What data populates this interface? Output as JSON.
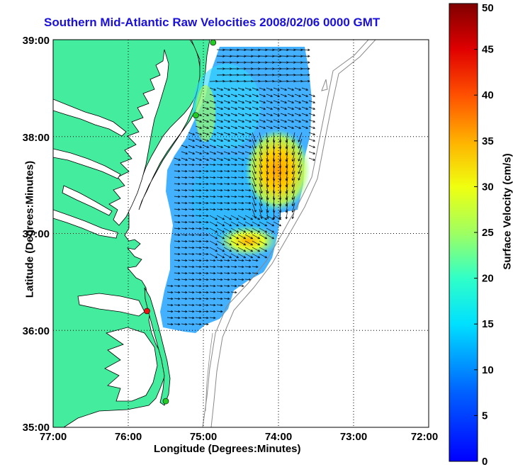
{
  "title": "Southern Mid-Atlantic Raw Velocities 2008/02/06 0000 GMT",
  "xlabel": "Longitude (Degrees:Minutes)",
  "ylabel": "Latitude (Degrees:Minutes)",
  "colorbar_label": "Surface Velocity (cm/s)",
  "x_ticks": [
    "77:00",
    "76:00",
    "75:00",
    "74:00",
    "73:00",
    "72:00"
  ],
  "y_ticks": [
    "39:00",
    "38:00",
    "37:00",
    "36:00",
    "35:00"
  ],
  "colorbar_ticks": [
    "0",
    "5",
    "10",
    "15",
    "20",
    "25",
    "30",
    "35",
    "40",
    "45",
    "50"
  ],
  "colors": {
    "land": "#44ec9e",
    "water": "#ffffff",
    "title": "#1a10d8",
    "station_active": "#22cc22",
    "station_alert": "#ee1111",
    "bathymetry": "#888888"
  },
  "map": {
    "lon_range": [
      -77,
      -72
    ],
    "lat_range": [
      35,
      39
    ],
    "grid": true,
    "colorbar_range": [
      0,
      50
    ],
    "colormap": "jet",
    "stations": [
      {
        "lon": -74.87,
        "lat": 38.97,
        "status": "active"
      },
      {
        "lon": -75.1,
        "lat": 38.22,
        "status": "active"
      },
      {
        "lon": -75.75,
        "lat": 36.2,
        "status": "alert"
      },
      {
        "lon": -75.5,
        "lat": 35.27,
        "status": "active"
      }
    ]
  }
}
